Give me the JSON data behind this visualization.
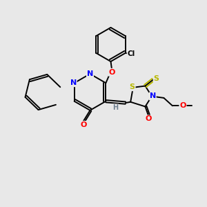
{
  "bg_color": "#e8e8e8",
  "bond_color": "#000000",
  "bond_width": 1.4,
  "atom_colors": {
    "N": "#0000ff",
    "O": "#ff0000",
    "S": "#b8b800",
    "Cl": "#000000",
    "H": "#708090",
    "C": "#000000"
  },
  "figsize": [
    3.0,
    3.0
  ],
  "dpi": 100
}
